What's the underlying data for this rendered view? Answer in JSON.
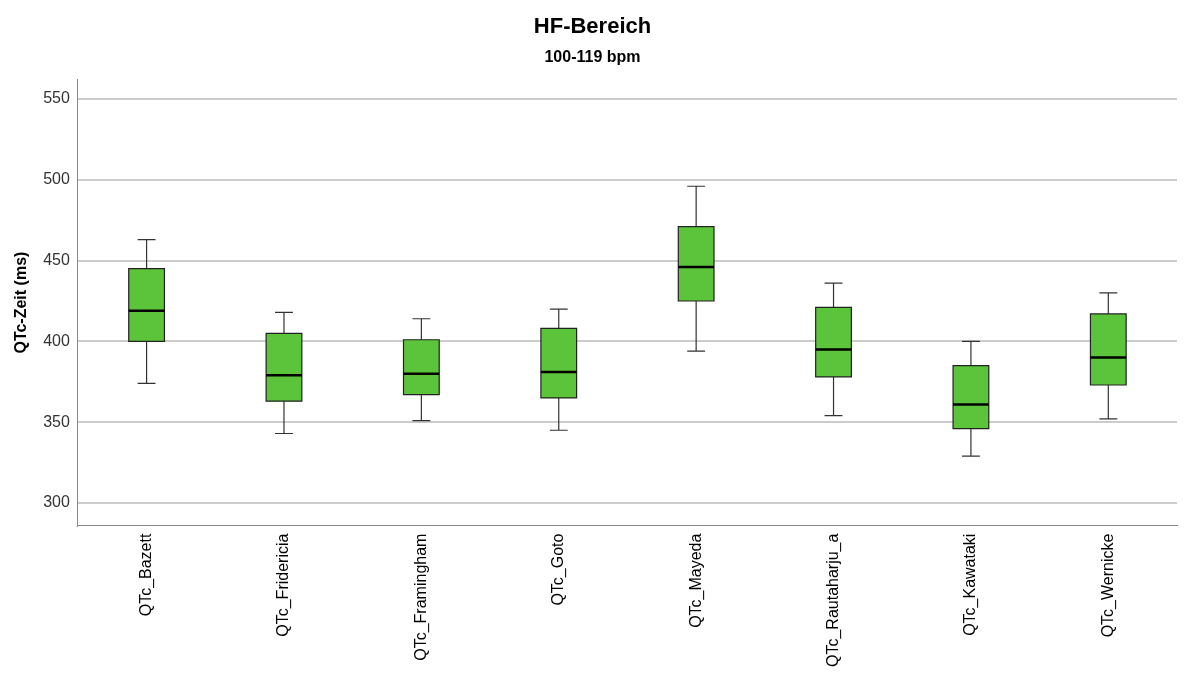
{
  "chart_data": {
    "type": "box",
    "title": "HF-Bereich",
    "subtitle": "100-119 bpm",
    "ylabel": "QTc-Zeit (ms)",
    "categories": [
      "QTc_Bazett",
      "QTc_Fridericia",
      "QTc_Framingham",
      "QTc_Goto",
      "QTc_Mayeda",
      "QTc_Rautaharju_a",
      "QTc_Kawataki",
      "QTc_Wernicke"
    ],
    "boxes": [
      {
        "low": 374,
        "q1": 400,
        "median": 419,
        "q3": 445,
        "high": 463
      },
      {
        "low": 343,
        "q1": 363,
        "median": 379,
        "q3": 405,
        "high": 418
      },
      {
        "low": 351,
        "q1": 367,
        "median": 380,
        "q3": 401,
        "high": 414
      },
      {
        "low": 345,
        "q1": 365,
        "median": 381,
        "q3": 408,
        "high": 420
      },
      {
        "low": 394,
        "q1": 425,
        "median": 446,
        "q3": 471,
        "high": 496
      },
      {
        "low": 354,
        "q1": 378,
        "median": 395,
        "q3": 421,
        "high": 436
      },
      {
        "low": 329,
        "q1": 346,
        "median": 361,
        "q3": 385,
        "high": 400
      },
      {
        "low": 352,
        "q1": 373,
        "median": 390,
        "q3": 417,
        "high": 430
      }
    ],
    "color": "#5cc43a",
    "ylim": [
      286,
      562
    ],
    "yticks": [
      300,
      350,
      400,
      450,
      500,
      550
    ],
    "grid": "y"
  }
}
